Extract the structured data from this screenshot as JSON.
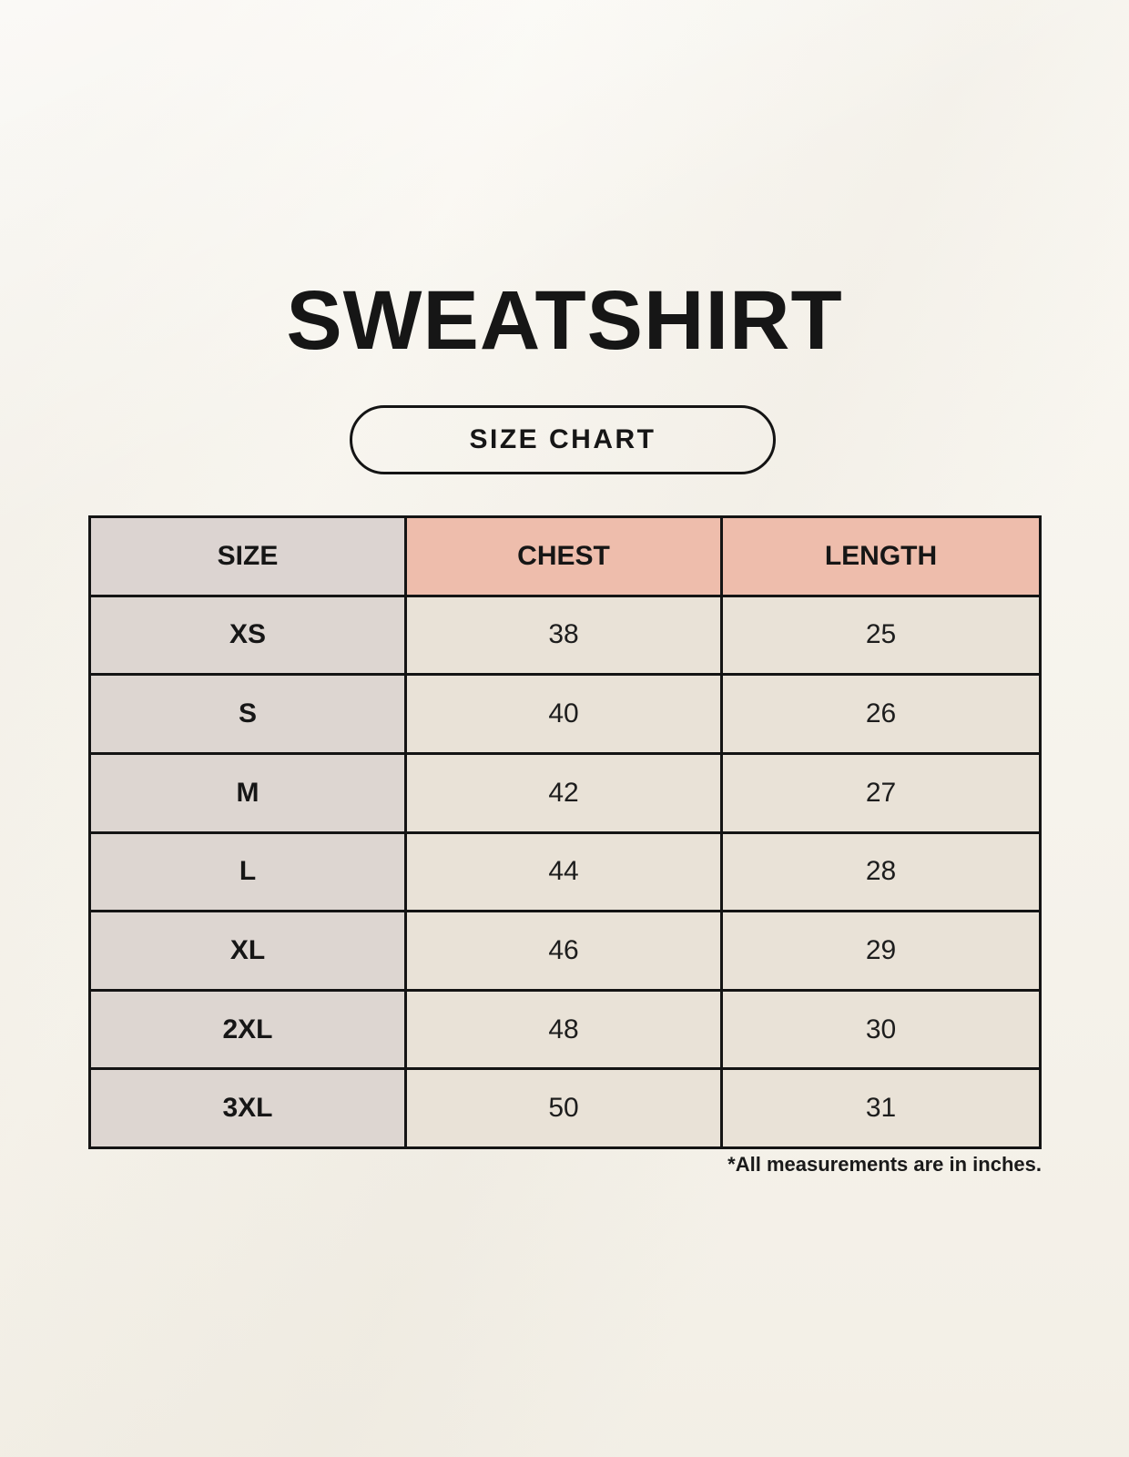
{
  "page": {
    "title": "SWEATSHIRT",
    "badge_label": "SIZE CHART",
    "footnote": "*All measurements are in inches."
  },
  "table": {
    "columns": [
      "SIZE",
      "CHEST",
      "LENGTH"
    ],
    "rows": [
      {
        "size": "XS",
        "chest": "38",
        "length": "25"
      },
      {
        "size": "S",
        "chest": "40",
        "length": "26"
      },
      {
        "size": "M",
        "chest": "42",
        "length": "27"
      },
      {
        "size": "L",
        "chest": "44",
        "length": "28"
      },
      {
        "size": "XL",
        "chest": "46",
        "length": "29"
      },
      {
        "size": "2XL",
        "chest": "48",
        "length": "30"
      },
      {
        "size": "3XL",
        "chest": "50",
        "length": "31"
      }
    ]
  },
  "colors": {
    "page_bg": "#f7f4ec",
    "header_size_bg": "#dcd4d1",
    "header_measure_bg": "#eebdac",
    "row_label_bg": "#ddd6d1",
    "row_value_bg": "#e9e2d7",
    "border": "#141414",
    "text": "#161616"
  }
}
